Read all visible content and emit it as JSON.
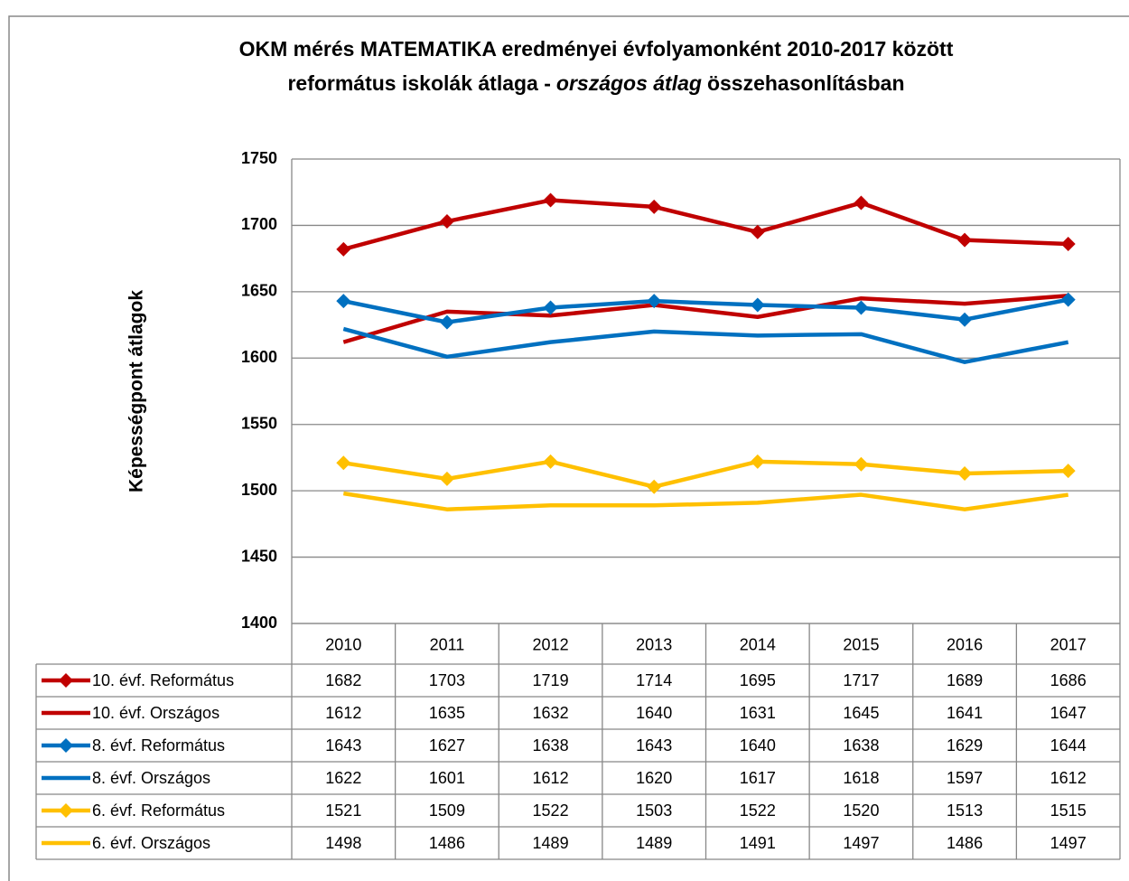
{
  "chart_data": {
    "type": "line",
    "title": [
      [
        {
          "text": "OKM mérés MATEMATIKA eredményei évfolyamonként 2010-2017 között",
          "italic": false
        }
      ],
      [
        {
          "text": "református iskolák átlaga -",
          "italic": false
        },
        {
          "text": "országos átlag",
          "italic": true
        },
        {
          "text": "összehasonlításban",
          "italic": false
        }
      ]
    ],
    "y_label": "Képességpont átlagok",
    "categories": [
      "2010",
      "2011",
      "2012",
      "2013",
      "2014",
      "2015",
      "2016",
      "2017"
    ],
    "series": [
      {
        "name": "10. évf. Református",
        "color": "#c00000",
        "marker": "diamond",
        "values": [
          1682,
          1703,
          1719,
          1714,
          1695,
          1717,
          1689,
          1686
        ]
      },
      {
        "name": "10. évf. Országos",
        "color": "#c00000",
        "marker": null,
        "values": [
          1612,
          1635,
          1632,
          1640,
          1631,
          1645,
          1641,
          1647
        ]
      },
      {
        "name": "8. évf. Református",
        "color": "#0070c0",
        "marker": "diamond",
        "values": [
          1643,
          1627,
          1638,
          1643,
          1640,
          1638,
          1629,
          1644
        ]
      },
      {
        "name": "8. évf. Országos",
        "color": "#0070c0",
        "marker": null,
        "values": [
          1622,
          1601,
          1612,
          1620,
          1617,
          1618,
          1597,
          1612
        ]
      },
      {
        "name": "6. évf. Református",
        "color": "#ffc000",
        "marker": "diamond",
        "values": [
          1521,
          1509,
          1522,
          1503,
          1522,
          1520,
          1513,
          1515
        ]
      },
      {
        "name": "6. évf. Országos",
        "color": "#ffc000",
        "marker": null,
        "values": [
          1498,
          1486,
          1489,
          1489,
          1491,
          1497,
          1486,
          1497
        ]
      }
    ],
    "ylim": [
      1400,
      1750
    ],
    "yticks": [
      1400,
      1450,
      1500,
      1550,
      1600,
      1650,
      1700,
      1750
    ],
    "grid": true,
    "data_table": true
  }
}
